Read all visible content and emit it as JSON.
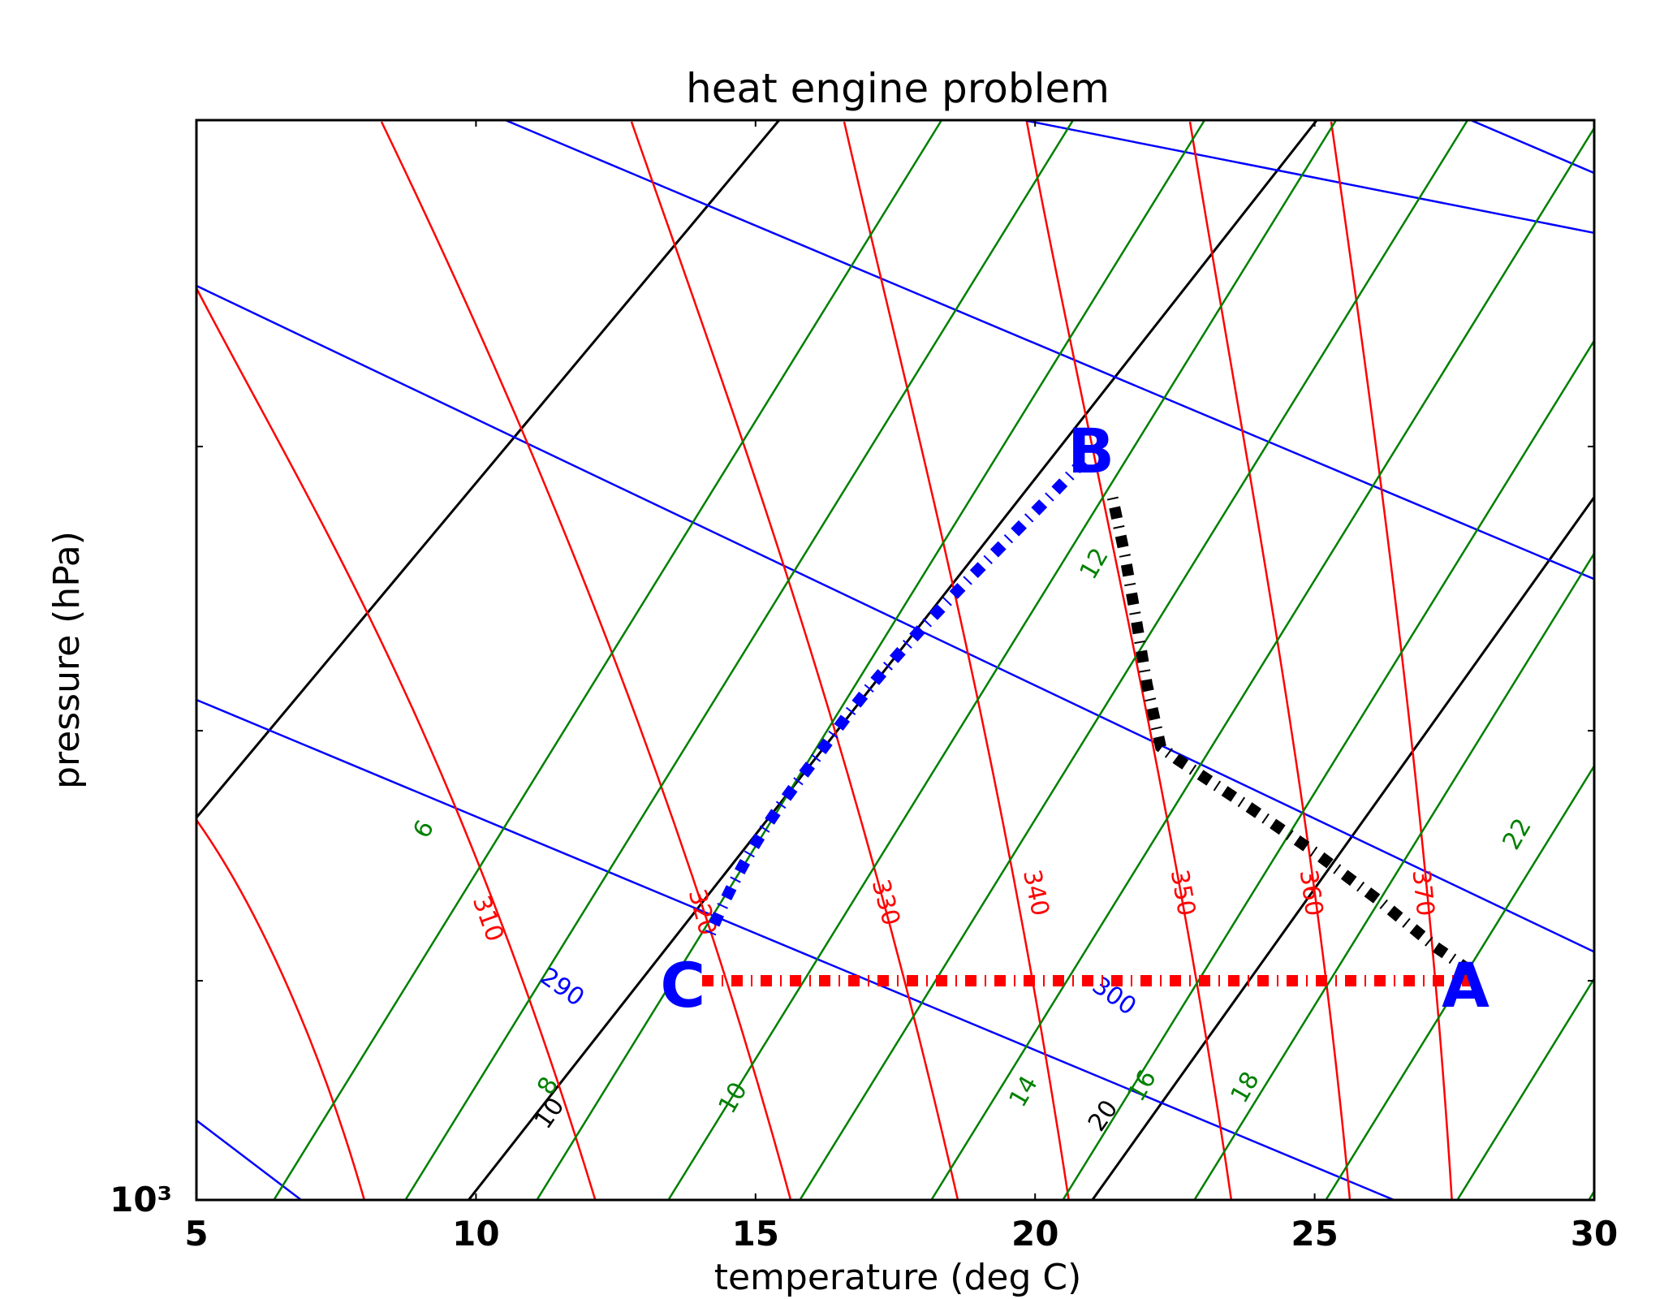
{
  "chart_data": {
    "type": "line",
    "title": "heat engine problem",
    "xlabel": "temperature (deg C)",
    "ylabel": "pressure (hPa)",
    "xlim": [
      5,
      30
    ],
    "x_ticks": [
      "5",
      "10",
      "15",
      "20",
      "25",
      "30"
    ],
    "y_ticks": [
      "10³"
    ],
    "y_scale": "log",
    "grid": false,
    "colors": {
      "temperature_isotherms": "#000000",
      "dry_adiabats": "#0000ff",
      "moist_adiabats": "#ff0000",
      "mixing_ratio": "#008000",
      "points": "#0000ff"
    },
    "contour_sets": [
      {
        "name": "isotherms",
        "color": "#000000",
        "labels": [
          "10",
          "20"
        ]
      },
      {
        "name": "dry adiabats",
        "color": "#0000ff",
        "labels": [
          "290",
          "300"
        ]
      },
      {
        "name": "moist adiabats",
        "color": "#ff0000",
        "labels": [
          "310",
          "320",
          "330",
          "340",
          "350",
          "360",
          "370"
        ]
      },
      {
        "name": "mixing ratio",
        "color": "#008000",
        "labels": [
          "6",
          "8",
          "10",
          "12",
          "14",
          "16",
          "18",
          "22"
        ]
      }
    ],
    "points": [
      {
        "label": "A",
        "x": 27.7
      },
      {
        "label": "B",
        "x": 21.0
      },
      {
        "label": "C",
        "x": 13.7
      }
    ],
    "process_paths": [
      {
        "from": "A",
        "to": "B",
        "color": "#000000",
        "style": "dash-dot"
      },
      {
        "from": "B",
        "to": "C",
        "color": "#0000ff",
        "style": "dash-dot"
      },
      {
        "from": "C",
        "to": "A",
        "color": "#ff0000",
        "style": "dash-dot"
      }
    ]
  }
}
